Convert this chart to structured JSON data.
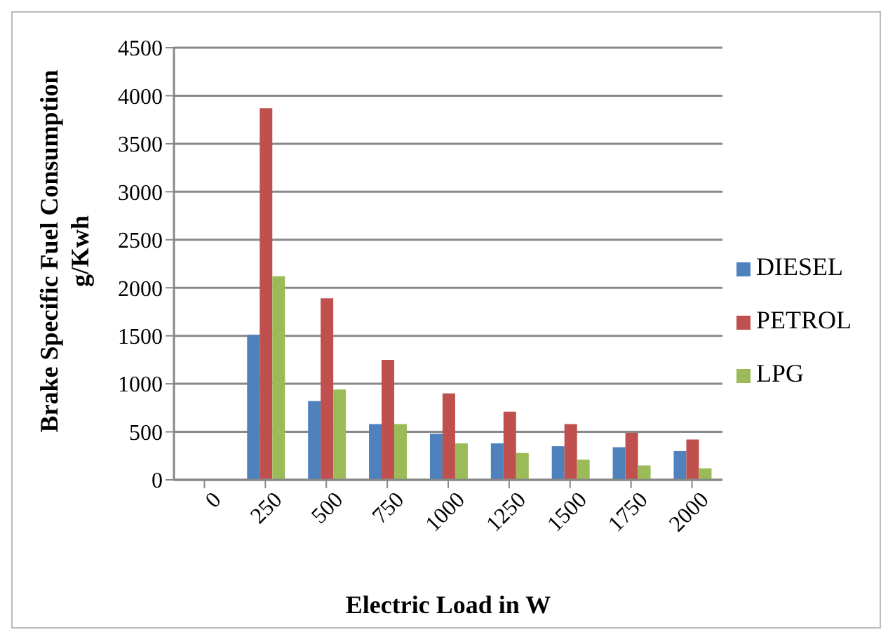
{
  "chart_data": {
    "type": "bar",
    "xlabel": "Electric Load in W",
    "ylabel": "Brake Specific Fuel Consumption g/Kwh",
    "categories": [
      "0",
      "250",
      "500",
      "750",
      "1000",
      "1250",
      "1500",
      "1750",
      "2000"
    ],
    "series": [
      {
        "name": "DIESEL",
        "color": "#4f81bd",
        "values": [
          0,
          1510,
          820,
          580,
          480,
          380,
          350,
          340,
          300
        ]
      },
      {
        "name": "PETROL",
        "color": "#c0504d",
        "values": [
          0,
          3870,
          1890,
          1250,
          900,
          710,
          580,
          490,
          420
        ]
      },
      {
        "name": "LPG",
        "color": "#9bbb59",
        "values": [
          0,
          2120,
          940,
          580,
          380,
          280,
          210,
          150,
          120
        ]
      }
    ],
    "ylim": [
      0,
      4500
    ],
    "yticks": [
      0,
      500,
      1000,
      1500,
      2000,
      2500,
      3000,
      3500,
      4000,
      4500
    ],
    "grid": "y",
    "legend": "right"
  }
}
